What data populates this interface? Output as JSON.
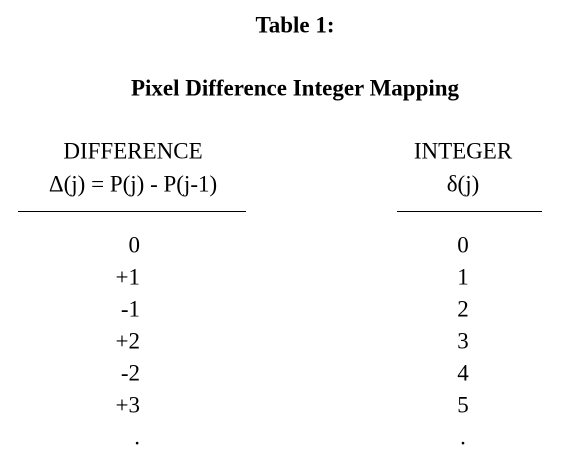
{
  "title": "Table 1:",
  "subtitle": "Pixel Difference Integer Mapping",
  "table": {
    "headers": [
      [
        "DIFFERENCE",
        "Δ(j) = P(j) - P(j-1)"
      ],
      [
        "INTEGER",
        "δ(j)"
      ]
    ],
    "rows": [
      [
        "0",
        "0"
      ],
      [
        "+1",
        "1"
      ],
      [
        "-1",
        "2"
      ],
      [
        "+2",
        "3"
      ],
      [
        "-2",
        "4"
      ],
      [
        "+3",
        "5"
      ],
      [
        ".",
        "."
      ]
    ]
  }
}
